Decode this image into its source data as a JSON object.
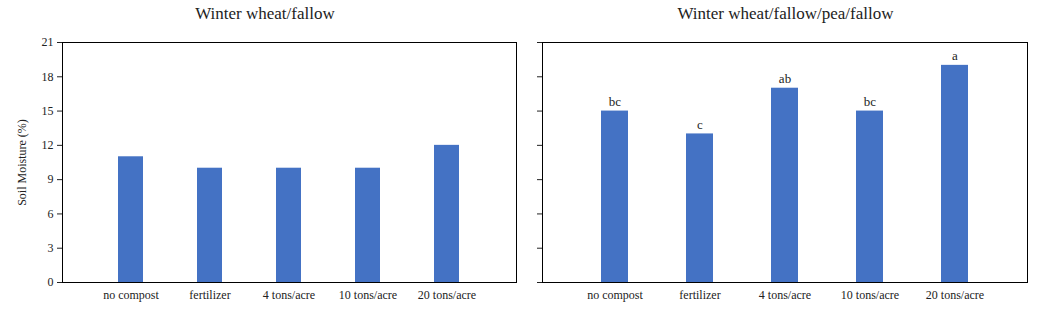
{
  "chart_data": [
    {
      "type": "bar",
      "title": "Winter wheat/fallow",
      "categories": [
        "no compost",
        "fertilizer",
        "4 tons/acre",
        "10 tons/acre",
        "20 tons/acre"
      ],
      "values": [
        11,
        10,
        10,
        10,
        12
      ],
      "color": "#4472c4",
      "ylabel": "Soil Moisture (%)",
      "ylim": [
        0,
        21
      ],
      "yticks": [
        0,
        3,
        6,
        9,
        12,
        15,
        18,
        21
      ],
      "grid": false
    },
    {
      "type": "bar",
      "title": "Winter wheat/fallow/pea/fallow",
      "categories": [
        "no compost",
        "fertilizer",
        "4 tons/acre",
        "10 tons/acre",
        "20 tons/acre"
      ],
      "values": [
        15,
        13,
        17,
        15,
        19
      ],
      "color": "#4472c4",
      "annotations": [
        "bc",
        "c",
        "ab",
        "bc",
        "a"
      ],
      "ylim": [
        0,
        21
      ],
      "yticks": [
        0,
        3,
        6,
        9,
        12,
        15,
        18,
        21
      ],
      "grid": false,
      "tick_labels": "x"
    }
  ]
}
